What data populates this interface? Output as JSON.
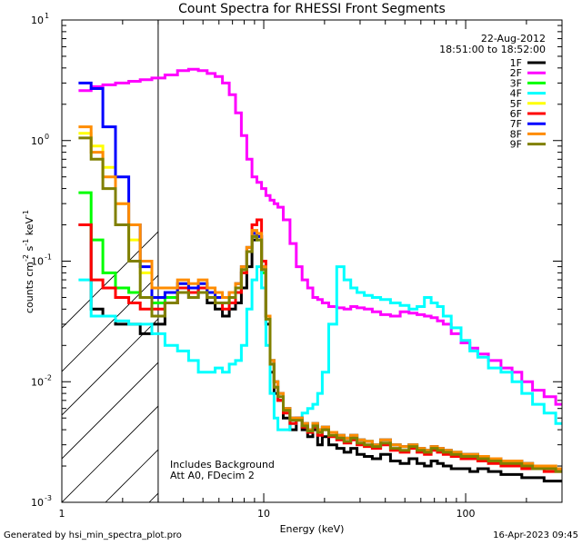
{
  "chart_data": {
    "type": "line",
    "title": "Count Spectra for RHESSI Front Segments",
    "xlabel": "Energy (keV)",
    "ylabel_base": "counts cm",
    "ylabel_sup1": "-2",
    "ylabel_mid1": " s",
    "ylabel_sup2": "-1",
    "ylabel_mid2": " keV",
    "ylabel_sup3": "-1",
    "x_scale": "log",
    "y_scale": "log",
    "xlim": [
      1,
      300
    ],
    "ylim": [
      0.001,
      10
    ],
    "x_ticks": [
      {
        "value": 1,
        "label": "1"
      },
      {
        "value": 10,
        "label": "10"
      },
      {
        "value": 100,
        "label": "100"
      }
    ],
    "y_ticks": [
      {
        "value": 0.001,
        "base": "10",
        "exp": "-3"
      },
      {
        "value": 0.01,
        "base": "10",
        "exp": "-2"
      },
      {
        "value": 0.1,
        "base": "10",
        "exp": "-1"
      },
      {
        "value": 1,
        "base": "10",
        "exp": "0"
      },
      {
        "value": 10,
        "base": "10",
        "exp": "1"
      }
    ],
    "date_label": "22-Aug-2012",
    "time_label": "18:51:00 to 18:52:00",
    "annotation_lines": [
      "Includes Background",
      "Att A0, FDecim 2"
    ],
    "excluded_region": [
      1,
      3
    ],
    "energies": [
      1.3,
      1.5,
      1.7,
      2.0,
      2.3,
      2.6,
      3.0,
      3.5,
      4.0,
      4.5,
      5.0,
      5.5,
      6.0,
      6.5,
      7.0,
      7.5,
      8.0,
      8.5,
      9.0,
      9.5,
      10.0,
      10.5,
      11.0,
      11.5,
      12.0,
      13.0,
      14.0,
      15.0,
      16.0,
      17.0,
      18.0,
      19.0,
      20.0,
      22.0,
      24.0,
      26.0,
      28.0,
      30.0,
      33.0,
      36.0,
      40.0,
      45.0,
      50.0,
      55.0,
      60.0,
      65.0,
      70.0,
      75.0,
      80.0,
      90.0,
      100.0,
      110.0,
      120.0,
      140.0,
      160.0,
      180.0,
      200.0,
      230.0,
      260.0,
      300.0
    ],
    "series": [
      {
        "name": "1F",
        "color": "#000000",
        "values": [
          0.2,
          0.04,
          0.035,
          0.03,
          0.03,
          0.025,
          0.03,
          0.045,
          0.055,
          0.05,
          0.06,
          0.045,
          0.04,
          0.035,
          0.04,
          0.045,
          0.06,
          0.09,
          0.15,
          0.16,
          0.09,
          0.03,
          0.012,
          0.008,
          0.007,
          0.005,
          0.004,
          0.005,
          0.004,
          0.0035,
          0.004,
          0.003,
          0.0035,
          0.003,
          0.0028,
          0.0026,
          0.0028,
          0.0025,
          0.0024,
          0.0023,
          0.0025,
          0.0022,
          0.0021,
          0.0023,
          0.0021,
          0.002,
          0.0022,
          0.0021,
          0.002,
          0.0019,
          0.0019,
          0.0018,
          0.0019,
          0.0018,
          0.0017,
          0.0017,
          0.0016,
          0.0016,
          0.0015,
          0.0015
        ]
      },
      {
        "name": "2F",
        "color": "#ff00ff",
        "values": [
          2.6,
          2.8,
          2.9,
          3.0,
          3.1,
          3.2,
          3.3,
          3.5,
          3.8,
          3.9,
          3.8,
          3.6,
          3.4,
          3.0,
          2.4,
          1.7,
          1.1,
          0.7,
          0.5,
          0.45,
          0.4,
          0.35,
          0.32,
          0.3,
          0.28,
          0.22,
          0.14,
          0.09,
          0.07,
          0.06,
          0.05,
          0.048,
          0.045,
          0.042,
          0.041,
          0.04,
          0.042,
          0.041,
          0.04,
          0.038,
          0.036,
          0.035,
          0.038,
          0.037,
          0.036,
          0.035,
          0.034,
          0.032,
          0.03,
          0.025,
          0.021,
          0.019,
          0.017,
          0.015,
          0.013,
          0.012,
          0.01,
          0.0085,
          0.0075,
          0.0065
        ]
      },
      {
        "name": "3F",
        "color": "#00ff00",
        "values": [
          0.37,
          0.15,
          0.08,
          0.06,
          0.055,
          0.05,
          0.045,
          0.05,
          0.06,
          0.055,
          0.06,
          0.05,
          0.045,
          0.045,
          0.05,
          0.06,
          0.08,
          0.12,
          0.16,
          0.15,
          0.08,
          0.035,
          0.015,
          0.01,
          0.008,
          0.006,
          0.005,
          0.005,
          0.0045,
          0.004,
          0.0045,
          0.004,
          0.0042,
          0.0038,
          0.0036,
          0.0034,
          0.0036,
          0.0033,
          0.0032,
          0.003,
          0.0033,
          0.003,
          0.0029,
          0.003,
          0.0028,
          0.0027,
          0.0029,
          0.0028,
          0.0027,
          0.0026,
          0.0025,
          0.0025,
          0.0024,
          0.0023,
          0.0022,
          0.0022,
          0.0021,
          0.002,
          0.002,
          0.0019
        ]
      },
      {
        "name": "4F",
        "color": "#00ffff",
        "values": [
          0.07,
          0.035,
          0.035,
          0.032,
          0.03,
          0.03,
          0.025,
          0.02,
          0.018,
          0.015,
          0.012,
          0.012,
          0.013,
          0.012,
          0.014,
          0.015,
          0.02,
          0.04,
          0.07,
          0.09,
          0.06,
          0.02,
          0.008,
          0.005,
          0.004,
          0.004,
          0.0045,
          0.005,
          0.0055,
          0.006,
          0.0065,
          0.008,
          0.012,
          0.03,
          0.09,
          0.07,
          0.06,
          0.055,
          0.052,
          0.05,
          0.048,
          0.045,
          0.043,
          0.04,
          0.042,
          0.05,
          0.045,
          0.042,
          0.035,
          0.028,
          0.022,
          0.018,
          0.016,
          0.013,
          0.012,
          0.01,
          0.008,
          0.0065,
          0.0055,
          0.0045
        ]
      },
      {
        "name": "5F",
        "color": "#ffff00",
        "values": [
          1.15,
          0.9,
          0.6,
          0.3,
          0.15,
          0.08,
          0.05,
          0.055,
          0.065,
          0.06,
          0.065,
          0.055,
          0.05,
          0.05,
          0.055,
          0.065,
          0.09,
          0.13,
          0.17,
          0.16,
          0.09,
          0.035,
          0.015,
          0.01,
          0.008,
          0.006,
          0.005,
          0.005,
          0.0045,
          0.004,
          0.0045,
          0.004,
          0.0042,
          0.0038,
          0.0036,
          0.0034,
          0.0036,
          0.0033,
          0.0032,
          0.003,
          0.0033,
          0.003,
          0.0029,
          0.003,
          0.0028,
          0.0027,
          0.0029,
          0.0028,
          0.0027,
          0.0026,
          0.0025,
          0.0025,
          0.0024,
          0.0023,
          0.0022,
          0.0022,
          0.0021,
          0.002,
          0.002,
          0.0019
        ]
      },
      {
        "name": "6F",
        "color": "#ff0000",
        "values": [
          0.2,
          0.07,
          0.06,
          0.05,
          0.045,
          0.04,
          0.04,
          0.045,
          0.06,
          0.055,
          0.06,
          0.05,
          0.045,
          0.04,
          0.045,
          0.055,
          0.08,
          0.12,
          0.2,
          0.22,
          0.1,
          0.035,
          0.014,
          0.009,
          0.007,
          0.0055,
          0.0045,
          0.005,
          0.0042,
          0.0038,
          0.0042,
          0.0036,
          0.004,
          0.0035,
          0.0033,
          0.0031,
          0.0033,
          0.003,
          0.0029,
          0.0028,
          0.003,
          0.0027,
          0.0026,
          0.0028,
          0.0026,
          0.0025,
          0.0027,
          0.0026,
          0.0025,
          0.0024,
          0.0023,
          0.0023,
          0.0022,
          0.0021,
          0.002,
          0.002,
          0.0019,
          0.0019,
          0.0018,
          0.0018
        ]
      },
      {
        "name": "7F",
        "color": "#0000ff",
        "values": [
          3.0,
          2.7,
          1.3,
          0.5,
          0.2,
          0.09,
          0.05,
          0.055,
          0.065,
          0.06,
          0.065,
          0.055,
          0.05,
          0.05,
          0.055,
          0.065,
          0.09,
          0.13,
          0.17,
          0.16,
          0.09,
          0.035,
          0.015,
          0.01,
          0.008,
          0.006,
          0.005,
          0.005,
          0.0045,
          0.004,
          0.0045,
          0.004,
          0.0042,
          0.0038,
          0.0036,
          0.0034,
          0.0036,
          0.0033,
          0.0032,
          0.003,
          0.0033,
          0.003,
          0.0029,
          0.003,
          0.0028,
          0.0027,
          0.0029,
          0.0028,
          0.0027,
          0.0026,
          0.0025,
          0.0025,
          0.0024,
          0.0023,
          0.0022,
          0.0022,
          0.0021,
          0.002,
          0.002,
          0.0019
        ]
      },
      {
        "name": "8F",
        "color": "#ff8c00",
        "values": [
          1.3,
          0.8,
          0.5,
          0.3,
          0.2,
          0.1,
          0.06,
          0.06,
          0.07,
          0.065,
          0.07,
          0.06,
          0.055,
          0.05,
          0.055,
          0.065,
          0.09,
          0.13,
          0.18,
          0.17,
          0.09,
          0.035,
          0.015,
          0.01,
          0.008,
          0.006,
          0.005,
          0.005,
          0.0045,
          0.004,
          0.0045,
          0.004,
          0.0042,
          0.0038,
          0.0036,
          0.0034,
          0.0036,
          0.0033,
          0.0032,
          0.003,
          0.0033,
          0.003,
          0.0029,
          0.003,
          0.0028,
          0.0027,
          0.0029,
          0.0028,
          0.0027,
          0.0026,
          0.0025,
          0.0025,
          0.0024,
          0.0023,
          0.0022,
          0.0022,
          0.0021,
          0.002,
          0.002,
          0.0019
        ]
      },
      {
        "name": "9F",
        "color": "#808000",
        "values": [
          1.05,
          0.7,
          0.4,
          0.2,
          0.1,
          0.05,
          0.035,
          0.045,
          0.055,
          0.05,
          0.055,
          0.05,
          0.045,
          0.045,
          0.05,
          0.06,
          0.085,
          0.12,
          0.16,
          0.15,
          0.085,
          0.033,
          0.014,
          0.009,
          0.0075,
          0.0058,
          0.0048,
          0.0048,
          0.0043,
          0.0039,
          0.0043,
          0.0038,
          0.004,
          0.0036,
          0.0034,
          0.0032,
          0.0034,
          0.0031,
          0.003,
          0.0029,
          0.0031,
          0.0028,
          0.0027,
          0.0029,
          0.0027,
          0.0026,
          0.0028,
          0.0027,
          0.0026,
          0.0025,
          0.0024,
          0.0024,
          0.0023,
          0.0022,
          0.0021,
          0.0021,
          0.002,
          0.0019,
          0.0019,
          0.0018
        ]
      }
    ]
  },
  "footer": {
    "generated_by": "Generated by hsi_min_spectra_plot.pro",
    "timestamp": "16-Apr-2023 09:45"
  }
}
